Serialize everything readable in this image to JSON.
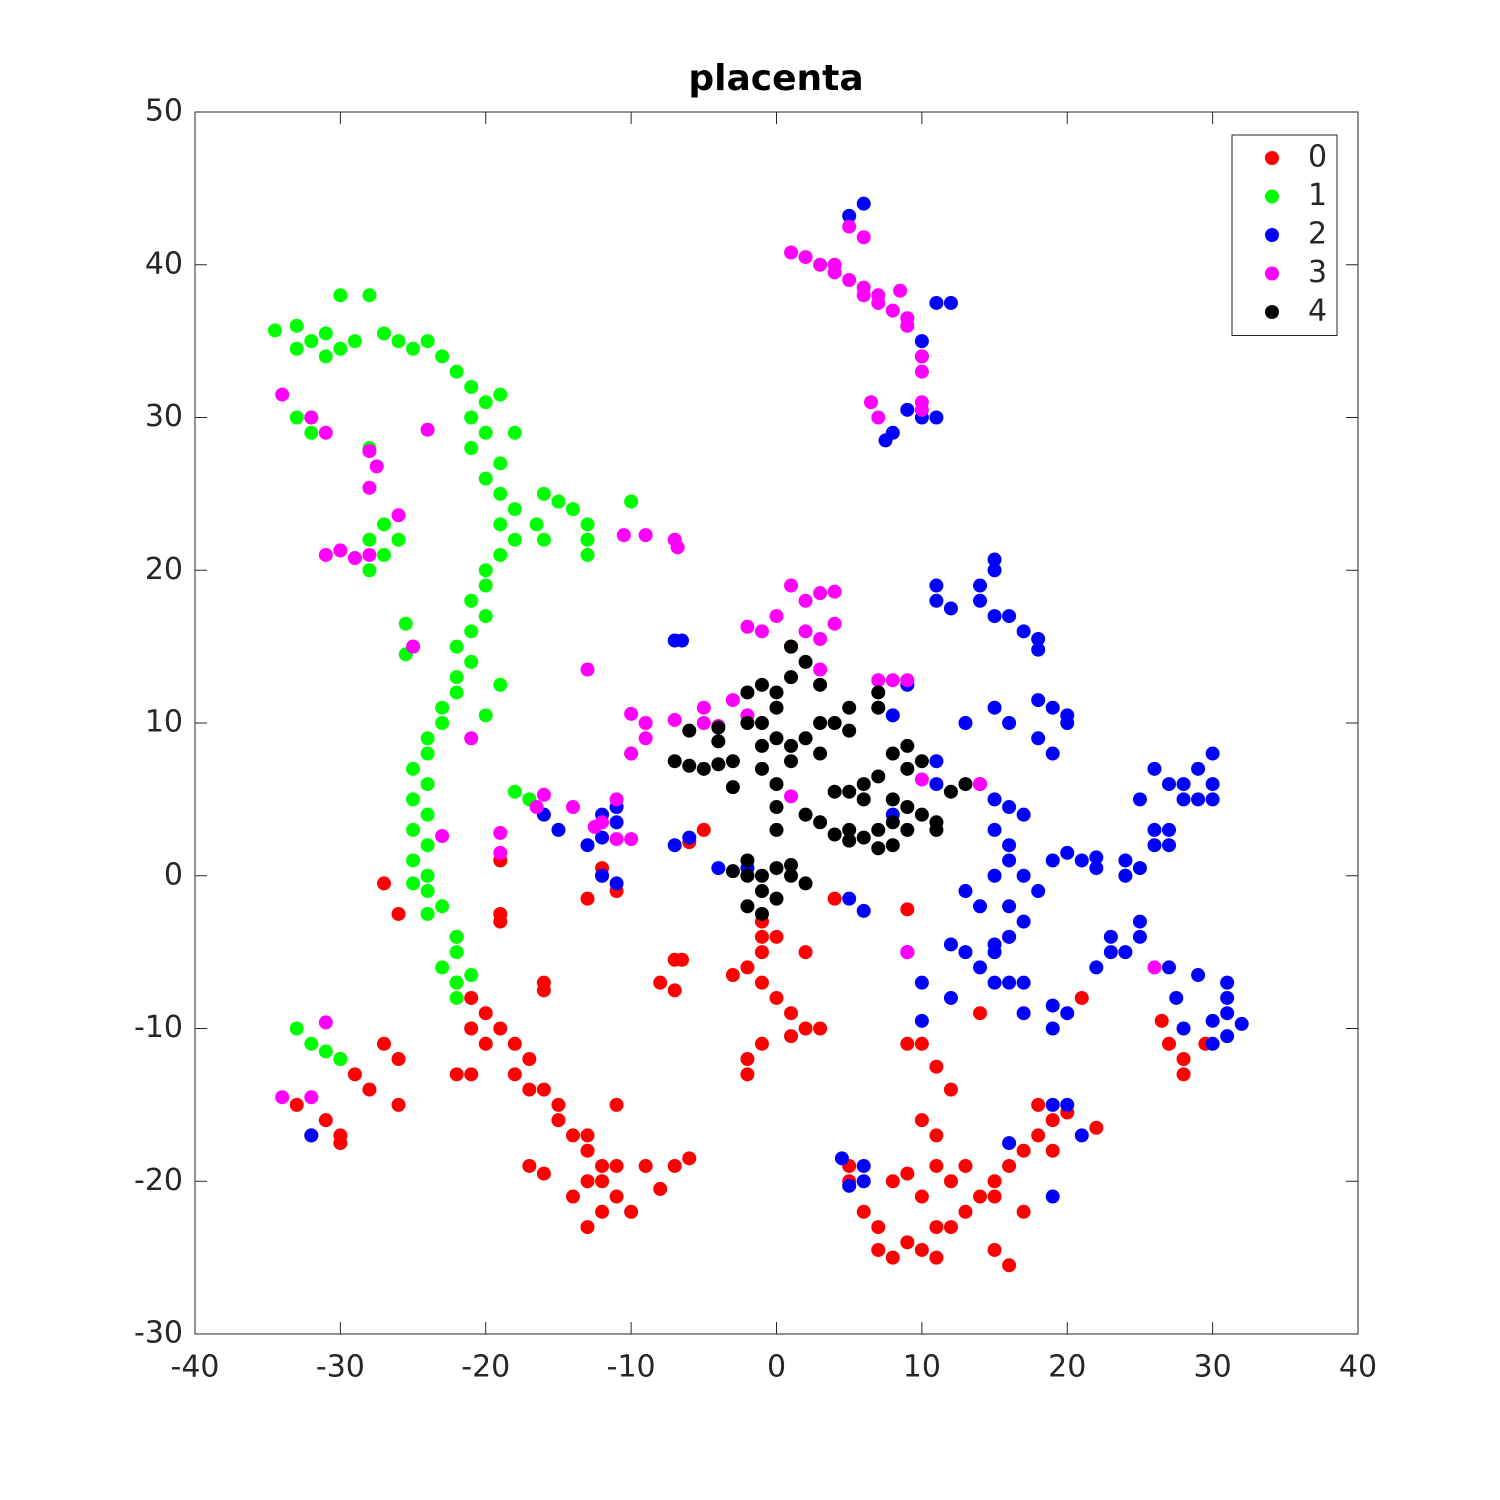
{
  "chart_data": {
    "type": "scatter",
    "title": "placenta",
    "xlim": [
      -40,
      40
    ],
    "ylim": [
      -30,
      50
    ],
    "xticks": [
      -40,
      -30,
      -20,
      -10,
      0,
      10,
      20,
      30,
      40
    ],
    "yticks": [
      -30,
      -20,
      -10,
      0,
      10,
      20,
      30,
      40,
      50
    ],
    "legend": "upper right",
    "grid": false,
    "series": [
      {
        "name": "0",
        "color": "#ff0000",
        "x": [
          -22,
          -21,
          -20,
          -21,
          -20,
          -19,
          -18,
          -17,
          -18,
          -17,
          -16,
          -15,
          -15,
          -14,
          -13,
          -13,
          -12,
          -12,
          -11,
          -11,
          -10,
          -12,
          -13,
          -14,
          -13,
          -9,
          -8,
          -7,
          -6,
          -11,
          -17,
          -16,
          -21,
          -22,
          -22,
          -19,
          -19,
          -16,
          -16,
          -33,
          -31,
          -30,
          -30,
          -29,
          -28,
          -27,
          -26,
          -26,
          -32,
          -30,
          -27,
          -26,
          -19,
          -12,
          -13,
          -11,
          -12,
          -7,
          -8,
          -7,
          -6.5,
          -1,
          -1,
          -2,
          -1,
          -3,
          0,
          -1,
          2,
          0,
          1,
          2,
          1,
          3,
          -1,
          -2,
          -2,
          -6,
          -5,
          4,
          5,
          5,
          6,
          7,
          7,
          8,
          9,
          10,
          11,
          11,
          12,
          10,
          11,
          12,
          13,
          14,
          15,
          15,
          16,
          17,
          18,
          19,
          17,
          16,
          15,
          18,
          20,
          19,
          13,
          9,
          8,
          10,
          11,
          12,
          11,
          10,
          9,
          9,
          14,
          16,
          21,
          22,
          26.5,
          27,
          28,
          28,
          29.5
        ],
        "values": [
          -7,
          -8,
          -9,
          -10,
          -11,
          -10,
          -11,
          -12,
          -13,
          -14,
          -14,
          -15,
          -16,
          -17,
          -17,
          -18,
          -19,
          -20,
          -19,
          -21,
          -22,
          -22,
          -20,
          -21,
          -23,
          -19,
          -20.5,
          -19,
          -18.5,
          -15,
          -19,
          -19.5,
          -13,
          -13,
          -4,
          -3,
          -2.5,
          -7.5,
          -7,
          -15,
          -16,
          -17,
          -12,
          -13,
          -14,
          -11,
          -12,
          -15,
          -17,
          -17.5,
          -0.5,
          -2.5,
          1,
          0,
          -1.5,
          -1,
          0.5,
          -7.5,
          -7,
          -5.5,
          -5.5,
          -3,
          -5,
          -6,
          -7,
          -6.5,
          -4,
          -4,
          -5,
          -8,
          -9,
          -10,
          -10.5,
          -10,
          -11,
          -12,
          -13,
          2.2,
          3,
          -1.5,
          -19,
          -20,
          -22,
          -23,
          -24.5,
          -25,
          -24,
          -24.5,
          -25,
          -23,
          -23,
          -21,
          -19,
          -20,
          -22,
          -21,
          -20,
          -21,
          -19,
          -18,
          -17,
          -16,
          -22,
          -25.5,
          -24.5,
          -15,
          -15.5,
          -18,
          -19,
          -19.5,
          -20,
          -16,
          -17,
          -14,
          -12.5,
          -11,
          -11,
          -2.2,
          -9,
          -4,
          -8,
          -16.5,
          -9.5,
          -11,
          -12,
          -13,
          -11
        ]
      },
      {
        "name": "1",
        "color": "#00ff00",
        "x": [
          -34.5,
          -33,
          -32,
          -31,
          -30,
          -33,
          -31,
          -30,
          -28,
          -29,
          -27,
          -26,
          -25,
          -24,
          -23,
          -22,
          -21,
          -20,
          -21,
          -20,
          -21,
          -19,
          -20,
          -19,
          -18,
          -19,
          -18,
          -19,
          -20,
          -20,
          -21,
          -20,
          -21,
          -22,
          -21,
          -22,
          -22,
          -23,
          -23,
          -24,
          -24,
          -25,
          -24,
          -25,
          -24,
          -25,
          -24,
          -25,
          -24,
          -25,
          -24,
          -23,
          -24,
          -22,
          -22,
          -23,
          -22,
          -21,
          -22,
          -32,
          -33,
          -32,
          -27,
          -28,
          -27,
          -26,
          -28,
          -25.5,
          -25,
          -25.5,
          -28,
          -33,
          -32,
          -31,
          -30,
          -16,
          -15,
          -14,
          -13,
          -13,
          -13,
          -16.5,
          -16,
          -10,
          -18,
          -10,
          -17,
          -19,
          -18,
          -19,
          -20
        ],
        "values": [
          35.7,
          36,
          35,
          35.5,
          34.5,
          34.5,
          34,
          38,
          38,
          35,
          35.5,
          35,
          34.5,
          35,
          34,
          33,
          32,
          31,
          30,
          29,
          28,
          27,
          26,
          25,
          24,
          23,
          22,
          21,
          20,
          19,
          18,
          17,
          16,
          15,
          14,
          13,
          12,
          11,
          10,
          9,
          8,
          7,
          6,
          5,
          4,
          3,
          2,
          1,
          0,
          -0.5,
          -1,
          -2,
          -2.5,
          -4,
          -5,
          -6,
          -7,
          -6.5,
          -8,
          30,
          30,
          29,
          23,
          22,
          21,
          22,
          20,
          16.5,
          15,
          14.5,
          28,
          -10,
          -11,
          -11.5,
          -12,
          25,
          24.5,
          24,
          23,
          22,
          21,
          23,
          22,
          24.5,
          5.5,
          8,
          5,
          31.5,
          29,
          12.5,
          10.5
        ]
      },
      {
        "name": "2",
        "color": "#0000ff",
        "x": [
          5,
          6,
          11,
          12,
          10,
          10,
          9,
          10,
          11,
          8,
          7.5,
          11,
          11,
          12,
          14,
          15,
          16,
          14,
          15,
          15,
          17,
          18,
          18,
          13,
          15,
          16,
          18,
          19,
          20,
          20,
          18,
          19,
          14,
          15,
          16,
          17,
          15,
          16,
          16,
          17,
          15,
          13,
          14,
          16,
          17,
          16,
          15,
          14,
          15,
          13,
          12,
          18,
          19,
          20,
          21,
          22,
          22,
          23,
          23,
          22,
          24,
          25,
          25,
          24,
          24,
          25,
          25,
          26,
          26,
          27,
          27,
          26,
          27,
          28,
          29,
          28,
          29,
          30,
          30,
          30,
          27,
          27.5,
          28,
          29,
          30,
          31,
          31,
          31,
          32,
          31,
          30,
          19,
          20,
          19,
          17,
          16,
          17,
          10,
          10,
          12,
          9,
          5,
          6,
          8,
          8,
          9,
          11,
          11,
          15,
          4.5,
          6,
          6,
          5,
          16,
          19,
          20,
          21,
          19,
          -15,
          -13,
          -12,
          -12,
          -11,
          -11,
          -11,
          -12,
          -16,
          -6,
          -7,
          -7,
          -6.5,
          -4,
          -2,
          -32
        ],
        "values": [
          43.2,
          44,
          37.5,
          37.5,
          35,
          34,
          30.5,
          30,
          30,
          29,
          28.5,
          19,
          18,
          17.5,
          18,
          17,
          17,
          19,
          20,
          20.7,
          16,
          15.5,
          14.8,
          10,
          11,
          10,
          11.5,
          11,
          10.5,
          10,
          9,
          8,
          6,
          5,
          4.5,
          4,
          3,
          2,
          1,
          0,
          0,
          -1,
          -2,
          -2,
          -3,
          -4,
          -5,
          -6,
          -7,
          -5,
          -4.5,
          -1,
          1,
          1.5,
          1,
          0.5,
          1.2,
          -4,
          -5,
          -6,
          -5,
          -4,
          -3,
          0,
          1,
          0.5,
          5,
          3,
          2,
          2,
          3,
          7,
          6,
          6,
          7,
          5,
          5,
          8,
          6,
          5,
          -6,
          -8,
          -10,
          -6.5,
          -9.5,
          -9,
          -8,
          -7,
          -9.7,
          -10.5,
          -11,
          -8.5,
          -9,
          -10,
          -9,
          -7,
          -7,
          -7,
          -9.5,
          -8,
          -5,
          -1.5,
          -2.3,
          4,
          10.5,
          12.5,
          6,
          7.5,
          -4.5,
          -18.5,
          -19,
          -20,
          -20.3,
          -17.5,
          -15,
          -15,
          -17,
          -21,
          3,
          2,
          2.5,
          4,
          3.5,
          4.5,
          -0.5,
          0,
          4,
          2.5,
          2,
          15.4,
          15.4,
          0.5,
          0.5,
          -17
        ]
      },
      {
        "name": "3",
        "color": "#ff00ff",
        "x": [
          1,
          2,
          3,
          4,
          5,
          6,
          7,
          8,
          9,
          8.5,
          9,
          6,
          5,
          10,
          10,
          10,
          10,
          6.5,
          7,
          4,
          6,
          7,
          -34,
          -32,
          -31,
          -24,
          -28,
          -27.5,
          -28,
          -26,
          -31,
          -30,
          -29,
          -28,
          -25,
          -13,
          -10.5,
          -9,
          -7,
          -6.8,
          1,
          2,
          3,
          4,
          2,
          3,
          4,
          -1,
          -2,
          0,
          1,
          3,
          7,
          8,
          9,
          -10,
          -9,
          -9,
          -10,
          -7,
          -5,
          -4,
          -5,
          -3,
          -2,
          -16,
          -14,
          -12,
          -11,
          -11,
          -12.5,
          -16.5,
          -19,
          -19,
          -23,
          -21,
          -10,
          1,
          10,
          14,
          9,
          26,
          -32,
          -34,
          -31
        ],
        "values": [
          40.8,
          40.5,
          40,
          39.5,
          39,
          38.5,
          37.5,
          37,
          36.5,
          38.3,
          36,
          41.8,
          42.5,
          34,
          33,
          31,
          30.5,
          31,
          30,
          40,
          38,
          38,
          31.5,
          30,
          29,
          29.2,
          27.8,
          26.8,
          25.4,
          23.6,
          21,
          21.3,
          20.8,
          21,
          15,
          13.5,
          22.3,
          22.3,
          22,
          21.5,
          19,
          18,
          18.5,
          18.6,
          16,
          15.5,
          16.5,
          16,
          16.3,
          17,
          15,
          13.5,
          12.8,
          12.8,
          12.8,
          10.6,
          10,
          9,
          8,
          10.2,
          10,
          9.8,
          11,
          11.5,
          10.5,
          5.3,
          4.5,
          3.5,
          5,
          2.4,
          3.2,
          4.5,
          2.8,
          1.5,
          2.6,
          9,
          2.4,
          5.2,
          6.3,
          6,
          -5,
          -6,
          -14.5,
          -14.5,
          -9.6
        ]
      },
      {
        "name": "4",
        "color": "#000000",
        "x": [
          0,
          1,
          1,
          2,
          -1,
          -2,
          0,
          -1,
          -2,
          0,
          1,
          2,
          3,
          3,
          4,
          5,
          5,
          7,
          7,
          -4,
          -4,
          -3,
          -5,
          -6,
          -7,
          -3,
          -1,
          0,
          1,
          0,
          0,
          2,
          3,
          4,
          5,
          6,
          6,
          7,
          8,
          8,
          9,
          9,
          10,
          5,
          6,
          7,
          8,
          9,
          10,
          8,
          7,
          5,
          4,
          9,
          11,
          12,
          13,
          -2,
          -1,
          -2,
          -1,
          0,
          1,
          2,
          -1,
          -2,
          1,
          0,
          -3,
          -6,
          -1,
          3,
          11,
          -4
        ],
        "values": [
          12,
          13,
          15,
          14,
          12.5,
          12,
          11,
          10,
          10,
          9,
          8.5,
          9,
          8,
          10,
          10,
          9.5,
          11,
          12,
          11,
          9.7,
          8.8,
          7.5,
          7,
          7.2,
          7.5,
          5.8,
          7,
          6,
          7.5,
          4.5,
          3,
          4,
          3.5,
          5.5,
          5.5,
          6,
          5,
          6.5,
          5,
          8,
          8.5,
          7,
          7.5,
          3,
          2.5,
          3,
          3.5,
          3,
          4,
          2,
          1.8,
          2.3,
          2.7,
          4.5,
          3,
          5.5,
          6,
          1,
          0,
          0,
          -1,
          -1.5,
          0,
          -0.5,
          -2.5,
          -2,
          0.7,
          0.5,
          0.3,
          9.5,
          8.5,
          12.5,
          3.5,
          7.3
        ]
      }
    ]
  }
}
